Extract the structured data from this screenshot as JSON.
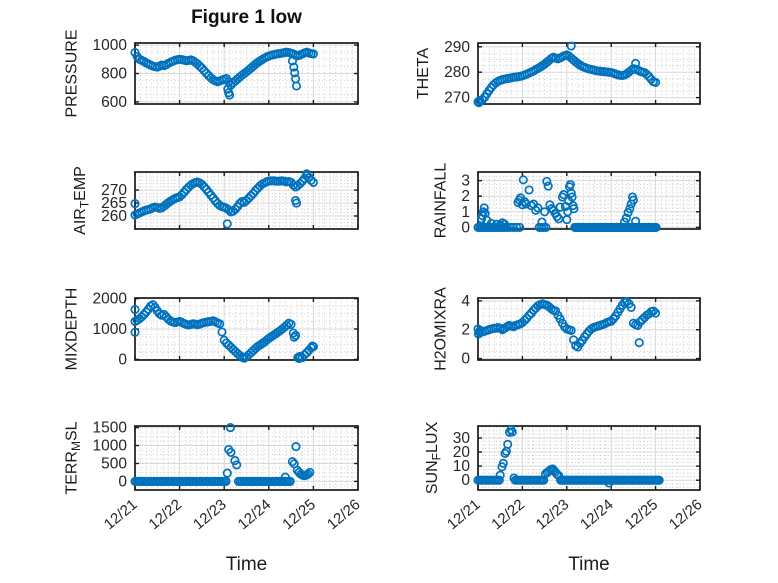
{
  "figure": {
    "title": "Figure 1 low",
    "background": "#ffffff"
  },
  "x_axis": {
    "label": "Time",
    "lim": [
      0,
      5
    ],
    "tick_values": [
      0,
      1,
      2,
      3,
      4,
      5
    ],
    "tick_labels": [
      "12/21",
      "12/22",
      "12/23",
      "12/24",
      "12/25",
      "12/26"
    ],
    "minor_step": 0.125
  },
  "style": {
    "marker_color": "#0072BD",
    "axis_color": "#1a1a1a",
    "text_color": "#262626",
    "grid_color": "#d9d9d9",
    "minor_grid_color": "#c9c9c9"
  },
  "chart_data": [
    {
      "id": "pressure",
      "type": "scatter",
      "row": 0,
      "col": 0,
      "ylabel": "PRESSURE",
      "ylabel_parts": [
        [
          "PRESSURE",
          false
        ]
      ],
      "ylim": [
        585,
        1015
      ],
      "yticks": [
        600,
        800,
        1000
      ],
      "ytick_labels": [
        "600",
        "800",
        "1000"
      ],
      "y_minor_step": 50,
      "x0": 0,
      "dx": 0.05,
      "y": [
        948,
        920,
        900,
        893,
        885,
        875,
        868,
        860,
        852,
        848,
        845,
        852,
        860,
        855,
        862,
        872,
        880,
        887,
        893,
        897,
        900,
        898,
        894,
        890,
        892,
        896,
        890,
        880,
        868,
        852,
        838,
        820,
        802,
        785,
        770,
        757,
        748,
        742,
        747,
        754,
        760,
        765,
        743,
        718,
        735,
        748,
        762,
        775,
        788,
        800,
        812,
        825,
        838,
        852,
        865,
        877,
        888,
        898,
        908,
        916,
        923,
        928,
        932,
        936,
        939,
        941,
        944,
        947,
        950,
        947,
        943,
        938,
        930,
        925,
        930,
        938,
        945,
        950,
        945,
        940,
        938
      ],
      "extra_points": [
        [
          2.08,
          690
        ],
        [
          2.1,
          665
        ],
        [
          2.12,
          648
        ],
        [
          3.53,
          888
        ],
        [
          3.56,
          845
        ],
        [
          3.58,
          805
        ],
        [
          3.6,
          762
        ],
        [
          3.62,
          712
        ]
      ]
    },
    {
      "id": "theta",
      "type": "scatter",
      "row": 0,
      "col": 1,
      "ylabel": "THETA",
      "ylabel_parts": [
        [
          "THETA",
          false
        ]
      ],
      "ylim": [
        267.5,
        291.5
      ],
      "yticks": [
        270,
        280,
        290
      ],
      "ytick_labels": [
        "270",
        "280",
        "290"
      ],
      "y_minor_step": 2.5,
      "x0": 0,
      "dx": 0.05,
      "y": [
        268.3,
        268.6,
        269.2,
        270.2,
        271.5,
        272.8,
        274.0,
        275.0,
        275.8,
        276.4,
        276.8,
        277.1,
        277.3,
        277.5,
        277.6,
        277.8,
        278.0,
        278.1,
        278.2,
        278.4,
        278.6,
        278.9,
        279.3,
        279.7,
        280.1,
        280.5,
        281.0,
        281.5,
        282.0,
        282.6,
        283.2,
        283.9,
        284.6,
        285.4,
        285.9,
        285.6,
        285.3,
        285.6,
        286.1,
        286.5,
        286.8,
        286.3,
        285.6,
        284.8,
        284.1,
        283.4,
        282.8,
        282.3,
        281.9,
        281.6,
        281.3,
        281.1,
        280.9,
        280.7,
        280.5,
        280.4,
        280.3,
        280.2,
        280.1,
        280.0,
        279.9,
        279.6,
        279.3,
        279.0,
        278.8,
        278.7,
        278.9,
        279.4,
        280.1,
        280.8,
        281.4,
        281.2,
        280.8,
        280.4,
        280.1,
        279.8,
        279.2,
        278.3,
        277.2,
        276.3,
        276.0
      ],
      "extra_points": [
        [
          2.1,
          290.3
        ],
        [
          3.55,
          283.5
        ],
        [
          0.02,
          268.0
        ],
        [
          0.04,
          268.9
        ]
      ]
    },
    {
      "id": "air-temp",
      "type": "scatter",
      "row": 1,
      "col": 0,
      "ylabel": "AIR_TEMP",
      "ylabel_parts": [
        [
          "AIR",
          false
        ],
        [
          "T",
          true
        ],
        [
          "EMP",
          false
        ]
      ],
      "ylim": [
        255,
        277
      ],
      "yticks": [
        260,
        265,
        270
      ],
      "ytick_labels": [
        "260",
        "265",
        "270"
      ],
      "y_minor_step": 1.25,
      "x0": 0,
      "dx": 0.05,
      "y": [
        260.4,
        260.8,
        261.2,
        261.6,
        262.0,
        262.3,
        262.5,
        262.8,
        263.2,
        263.5,
        263.3,
        263.0,
        263.2,
        263.8,
        264.5,
        265.2,
        265.8,
        266.3,
        266.8,
        267.1,
        267.4,
        268.2,
        269.2,
        270.2,
        271.1,
        271.9,
        272.5,
        272.9,
        273.1,
        272.8,
        272.2,
        271.3,
        270.3,
        269.2,
        268.1,
        267.0,
        265.9,
        264.9,
        264.1,
        263.6,
        263.4,
        263.0,
        262.4,
        261.6,
        261.9,
        262.6,
        263.6,
        264.8,
        265.6,
        265.3,
        266.0,
        266.9,
        267.8,
        268.7,
        269.7,
        270.7,
        271.6,
        272.3,
        272.8,
        273.2,
        273.5,
        273.6,
        273.6,
        273.5,
        273.4,
        273.5,
        273.6,
        273.4,
        273.2,
        273.3,
        273.0,
        272.0,
        271.2,
        271.8,
        272.5,
        273.4,
        274.5,
        275.5,
        274.8,
        273.8,
        273.0
      ],
      "extra_points": [
        [
          0.0,
          264.8
        ],
        [
          2.07,
          257.0
        ],
        [
          3.6,
          266.0
        ],
        [
          3.62,
          265.0
        ],
        [
          3.85,
          276.3
        ]
      ]
    },
    {
      "id": "rainfall",
      "type": "scatter",
      "row": 1,
      "col": 1,
      "ylabel": "RAINFALL",
      "ylabel_parts": [
        [
          "RAINFALL",
          false
        ]
      ],
      "ylim": [
        -0.1,
        3.55
      ],
      "yticks": [
        0,
        1,
        2,
        3
      ],
      "ytick_labels": [
        "0",
        "1",
        "2",
        "3"
      ],
      "y_minor_step": 0.25,
      "points": [
        [
          0.08,
          0.55
        ],
        [
          0.1,
          0.75
        ],
        [
          0.12,
          1.0
        ],
        [
          0.14,
          1.25
        ],
        [
          0.16,
          0.9
        ],
        [
          0.2,
          0.45
        ],
        [
          0.3,
          0.25
        ],
        [
          0.42,
          0.2
        ],
        [
          0.5,
          0.15
        ],
        [
          0.55,
          0.3
        ],
        [
          0.6,
          0.2
        ],
        [
          0.9,
          1.6
        ],
        [
          0.93,
          1.75
        ],
        [
          0.96,
          1.9
        ],
        [
          1.0,
          1.45
        ],
        [
          1.02,
          3.05
        ],
        [
          1.05,
          1.65
        ],
        [
          1.08,
          1.5
        ],
        [
          1.15,
          2.4
        ],
        [
          1.2,
          1.4
        ],
        [
          1.25,
          1.5
        ],
        [
          1.3,
          1.1
        ],
        [
          1.35,
          1.25
        ],
        [
          1.44,
          0.35
        ],
        [
          1.5,
          1.0
        ],
        [
          1.55,
          2.95
        ],
        [
          1.58,
          2.65
        ],
        [
          1.62,
          1.45
        ],
        [
          1.66,
          1.2
        ],
        [
          1.7,
          1.1
        ],
        [
          1.74,
          0.9
        ],
        [
          1.78,
          0.7
        ],
        [
          1.82,
          0.55
        ],
        [
          1.85,
          1.3
        ],
        [
          1.9,
          1.95
        ],
        [
          1.93,
          2.1
        ],
        [
          1.97,
          1.35
        ],
        [
          2.0,
          0.5
        ],
        [
          2.02,
          1.0
        ],
        [
          2.04,
          1.7
        ],
        [
          2.06,
          2.6
        ],
        [
          2.08,
          2.75
        ],
        [
          2.1,
          2.2
        ],
        [
          2.12,
          1.95
        ],
        [
          2.14,
          1.4
        ],
        [
          2.16,
          1.2
        ],
        [
          3.3,
          0.35
        ],
        [
          3.34,
          0.6
        ],
        [
          3.38,
          0.95
        ],
        [
          3.42,
          1.2
        ],
        [
          3.45,
          1.5
        ],
        [
          3.48,
          1.95
        ],
        [
          3.5,
          1.75
        ],
        [
          3.55,
          0.4
        ]
      ],
      "zero_runs": [
        [
          0,
          0.6,
          0.04
        ],
        [
          0.66,
          1.0,
          0.07
        ],
        [
          1.38,
          1.54,
          0.05
        ],
        [
          2.18,
          4.03,
          0.03
        ]
      ]
    },
    {
      "id": "mixdepth",
      "type": "scatter",
      "row": 2,
      "col": 0,
      "ylabel": "MIXDEPTH",
      "ylabel_parts": [
        [
          "MIXDEPTH",
          false
        ]
      ],
      "ylim": [
        -20,
        2020
      ],
      "yticks": [
        0,
        1000,
        2000
      ],
      "ytick_labels": [
        "0",
        "1000",
        "2000"
      ],
      "y_minor_step": 250,
      "x0": 0,
      "dx": 0.05,
      "y": [
        1250,
        1290,
        1340,
        1400,
        1475,
        1560,
        1650,
        1750,
        1800,
        1710,
        1600,
        1500,
        1450,
        1480,
        1400,
        1320,
        1260,
        1230,
        1210,
        1230,
        1250,
        1220,
        1180,
        1150,
        1130,
        1150,
        1170,
        1160,
        1140,
        1160,
        1190,
        1210,
        1230,
        1240,
        1250,
        1270,
        1240,
        1200,
        1170,
        900,
        630,
        540,
        470,
        400,
        330,
        260,
        190,
        130,
        70,
        40,
        90,
        150,
        220,
        290,
        360,
        420,
        470,
        520,
        570,
        630,
        690,
        740,
        790,
        840,
        890,
        940,
        1000,
        1060,
        1120,
        1190,
        1150,
        870,
        790,
        60,
        100,
        60,
        150,
        220,
        300,
        380,
        420
      ],
      "extra_points": [
        [
          0.0,
          1640
        ],
        [
          0.0,
          890
        ],
        [
          3.57,
          730
        ],
        [
          3.68,
          30
        ],
        [
          3.98,
          440
        ]
      ]
    },
    {
      "id": "h2omixra",
      "type": "scatter",
      "row": 2,
      "col": 1,
      "ylabel": "H2OMIXRA",
      "ylabel_parts": [
        [
          "H2OMIXRA",
          false
        ]
      ],
      "ylim": [
        -0.1,
        4.2
      ],
      "yticks": [
        0,
        2,
        4
      ],
      "ytick_labels": [
        "0",
        "2",
        "4"
      ],
      "y_minor_step": 0.5,
      "x0": 0,
      "dx": 0.05,
      "y": [
        2.05,
        1.95,
        1.85,
        1.9,
        1.95,
        2.0,
        2.05,
        2.1,
        2.1,
        2.15,
        2.1,
        2.0,
        2.1,
        2.2,
        2.3,
        2.25,
        2.2,
        2.3,
        2.35,
        2.4,
        2.5,
        2.65,
        2.8,
        3.0,
        3.15,
        3.35,
        3.5,
        3.65,
        3.75,
        3.8,
        3.75,
        3.7,
        3.6,
        3.45,
        3.35,
        3.3,
        3.0,
        2.75,
        2.45,
        2.2,
        2.05,
        2.0,
        1.95,
        1.3,
        0.9,
        0.8,
        1.05,
        1.25,
        1.5,
        1.7,
        1.9,
        2.05,
        2.15,
        2.2,
        2.25,
        2.3,
        2.35,
        2.4,
        2.5,
        2.55,
        2.6,
        2.75,
        2.95,
        3.2,
        3.45,
        3.7,
        3.9,
        3.95,
        3.8,
        3.55,
        2.45,
        2.35,
        2.3,
        2.55,
        2.7,
        2.85,
        3.0,
        3.1,
        3.25,
        3.3,
        3.15
      ],
      "extra_points": [
        [
          3.63,
          1.1
        ],
        [
          0.01,
          1.7
        ],
        [
          0.03,
          1.85
        ]
      ]
    },
    {
      "id": "terr-msl",
      "type": "scatter",
      "row": 3,
      "col": 0,
      "ylabel": "TERR_MSL",
      "ylabel_parts": [
        [
          "TERR",
          false
        ],
        [
          "M",
          true
        ],
        [
          "SL",
          false
        ]
      ],
      "ylim": [
        -240,
        1545
      ],
      "yticks": [
        0,
        500,
        1000,
        1500
      ],
      "ytick_labels": [
        "0",
        "500",
        "1000",
        "1500"
      ],
      "y_minor_step": 125,
      "points": [
        [
          2.07,
          230
        ],
        [
          2.1,
          890
        ],
        [
          2.14,
          1500
        ],
        [
          2.15,
          810
        ],
        [
          2.24,
          580
        ],
        [
          2.28,
          460
        ],
        [
          3.37,
          120
        ],
        [
          3.53,
          550
        ],
        [
          3.57,
          490
        ],
        [
          3.61,
          970
        ],
        [
          3.64,
          310
        ],
        [
          3.68,
          250
        ],
        [
          3.72,
          200
        ],
        [
          3.76,
          170
        ],
        [
          3.8,
          160
        ],
        [
          3.84,
          175
        ],
        [
          3.88,
          205
        ],
        [
          3.92,
          250
        ]
      ],
      "zero_runs": [
        [
          0,
          2.04,
          0.04
        ],
        [
          2.32,
          3.5,
          0.04
        ]
      ]
    },
    {
      "id": "sun-flux",
      "type": "scatter",
      "row": 3,
      "col": 1,
      "ylabel": "SUN_FLUX",
      "ylabel_parts": [
        [
          "SUN",
          false
        ],
        [
          "F",
          true
        ],
        [
          "LUX",
          false
        ]
      ],
      "ylim": [
        -7,
        38.5
      ],
      "yticks": [
        0,
        10,
        20,
        30
      ],
      "ytick_labels": [
        "0",
        "10",
        "20",
        "30"
      ],
      "y_minor_step": 2.5,
      "points": [
        [
          0.5,
          3.5
        ],
        [
          0.54,
          9.5
        ],
        [
          0.57,
          12
        ],
        [
          0.61,
          19
        ],
        [
          0.64,
          20.5
        ],
        [
          0.67,
          25.5
        ],
        [
          0.71,
          34
        ],
        [
          0.74,
          35.8
        ],
        [
          0.77,
          34.2
        ],
        [
          0.81,
          1.5
        ],
        [
          1.52,
          4.5
        ],
        [
          1.56,
          5.5
        ],
        [
          1.6,
          6.5
        ],
        [
          1.64,
          7.5
        ],
        [
          1.68,
          8.0
        ],
        [
          1.71,
          7.0
        ],
        [
          1.74,
          5.7
        ],
        [
          1.78,
          4.3
        ],
        [
          1.82,
          3.2
        ],
        [
          2.95,
          -2.0
        ]
      ],
      "zero_runs": [
        [
          0,
          0.48,
          0.04
        ],
        [
          0.84,
          1.48,
          0.04
        ],
        [
          1.86,
          4.08,
          0.03
        ]
      ]
    }
  ]
}
